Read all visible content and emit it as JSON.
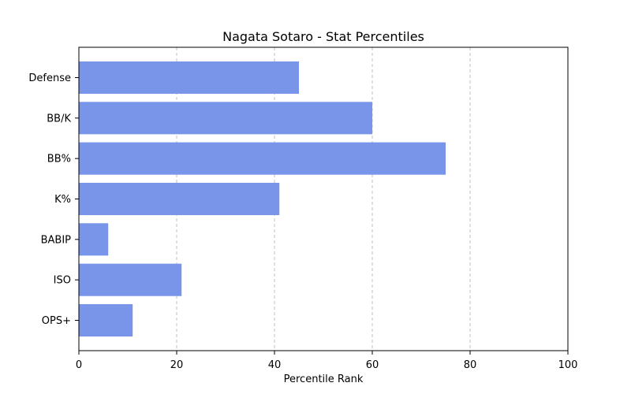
{
  "chart_data": {
    "type": "bar",
    "orientation": "horizontal",
    "title": "Nagata Sotaro - Stat Percentiles",
    "xlabel": "Percentile Rank",
    "ylabel": "",
    "categories": [
      "Defense",
      "BB/K",
      "BB%",
      "K%",
      "BABIP",
      "ISO",
      "OPS+"
    ],
    "values": [
      45,
      60,
      75,
      41,
      6,
      21,
      11
    ],
    "xlim": [
      0,
      100
    ],
    "xticks": [
      0,
      20,
      40,
      60,
      80,
      100
    ],
    "grid": "x-dashed",
    "bar_color": "#7895EA",
    "grid_color": "#b0b0b0"
  }
}
